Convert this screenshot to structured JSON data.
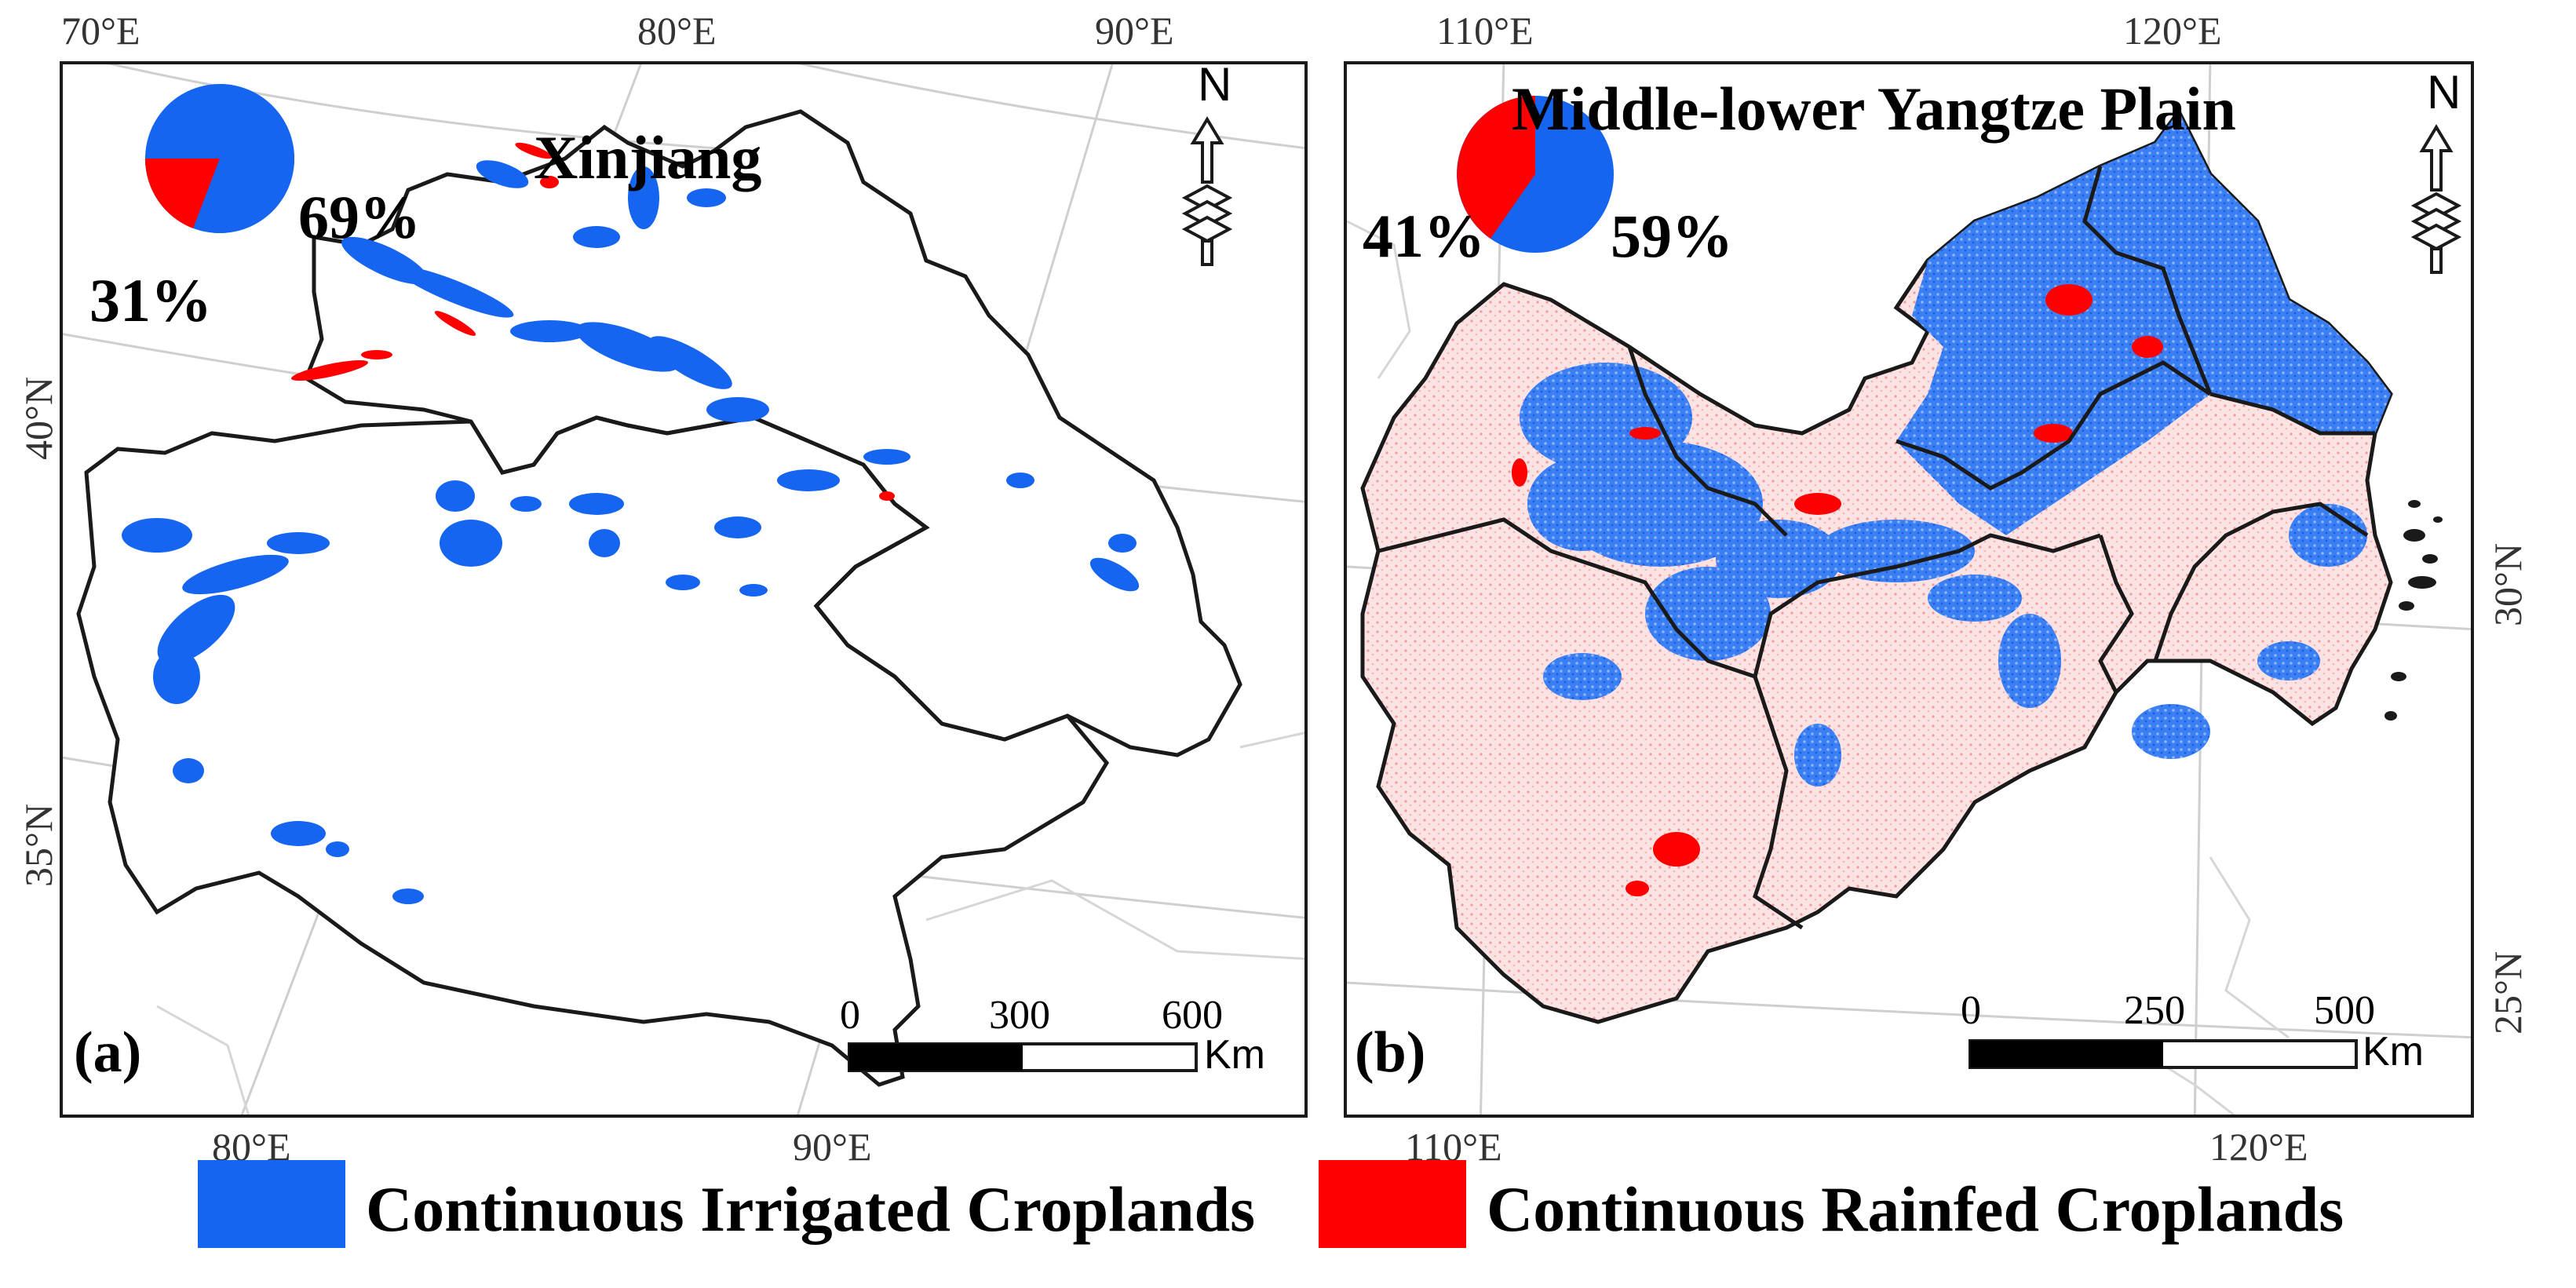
{
  "colors": {
    "irrigated": "#1565f0",
    "rainfed": "#ff0000",
    "border": "#1a1a1a",
    "graticule": "#c8c8c8"
  },
  "panel_a": {
    "label": "(a)",
    "title": "Xinjiang",
    "pie": {
      "irrigated_pct": 69,
      "rainfed_pct": 31,
      "irrigated_label": "69%",
      "rainfed_label": "31%"
    },
    "top_lon": [
      "70°E",
      "80°E",
      "90°E"
    ],
    "bottom_lon": [
      "80°E",
      "90°E"
    ],
    "left_lat": [
      "40°N",
      "35°N"
    ],
    "scale": {
      "ticks": [
        "0",
        "300",
        "600"
      ],
      "unit": "Km"
    },
    "north": "N"
  },
  "panel_b": {
    "label": "(b)",
    "title": "Middle-lower Yangtze Plain",
    "pie": {
      "irrigated_pct": 59,
      "rainfed_pct": 41,
      "irrigated_label": "59%",
      "rainfed_label": "41%"
    },
    "top_lon": [
      "110°E",
      "120°E"
    ],
    "bottom_lon": [
      "110°E",
      "120°E"
    ],
    "right_lat": [
      "30°N",
      "25°N"
    ],
    "scale": {
      "ticks": [
        "0",
        "250",
        "500"
      ],
      "unit": "Km"
    },
    "north": "N"
  },
  "legend": {
    "irrigated_label": "Continuous Irrigated Croplands",
    "rainfed_label": "Continuous Rainfed Croplands"
  }
}
